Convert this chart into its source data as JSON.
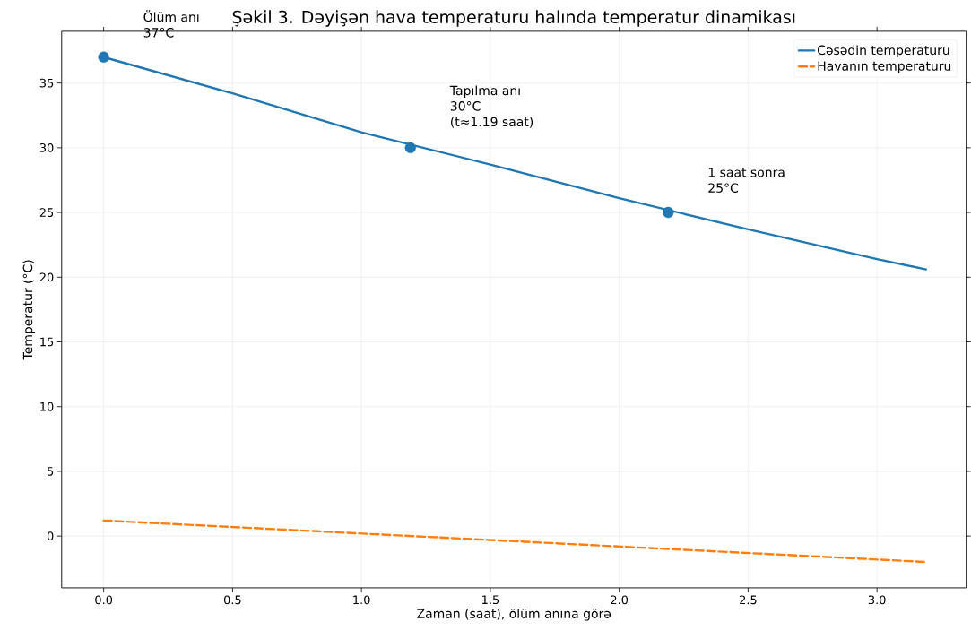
{
  "chart_data": {
    "type": "line",
    "title": "Şəkil 3. Dəyişən hava temperaturu halında temperatur dinamikası",
    "xlabel": "Zaman (saat), ölüm anına görə",
    "ylabel": "Temperatur (°C)",
    "series": [
      {
        "name": "Cəsədin temperaturu",
        "color": "#1f77b4",
        "line_style": "solid",
        "marker": "none",
        "x": [
          0,
          0.5,
          1.0,
          1.5,
          2.0,
          2.5,
          3.0,
          3.19
        ],
        "values": [
          37,
          34.2,
          31.2,
          28.7,
          26.1,
          23.7,
          21.4,
          20.6
        ]
      },
      {
        "name": "Havanın temperaturu",
        "color": "#ff7f0e",
        "line_style": "dashed",
        "marker": "none",
        "x": [
          0,
          3.19
        ],
        "values": [
          1.2,
          -2.0
        ]
      },
      {
        "type": "scatter",
        "color": "#1f77b4",
        "marker": "circle",
        "x": [
          0,
          1.19,
          2.19
        ],
        "values": [
          37,
          30,
          25
        ]
      }
    ],
    "annotations": [
      "Ölüm anı",
      "37°C",
      "Tapılma anı",
      "30°C",
      "(t≈1.19 saat)",
      "1 saat sonra",
      "25°C"
    ],
    "xlim": [
      -0.163,
      3.346
    ],
    "ylim": [
      -4.0,
      39.0
    ],
    "xticks": [
      {
        "value": 0,
        "label": "0.0"
      },
      0.5,
      {
        "value": 1,
        "label": "1.0"
      },
      1.5,
      {
        "value": 2,
        "label": "2.0"
      },
      2.5,
      {
        "value": 3,
        "label": "3.0"
      }
    ],
    "yticks": [
      0,
      5,
      10,
      15,
      20,
      25,
      30,
      35
    ],
    "grid": true,
    "legend": "top right"
  }
}
